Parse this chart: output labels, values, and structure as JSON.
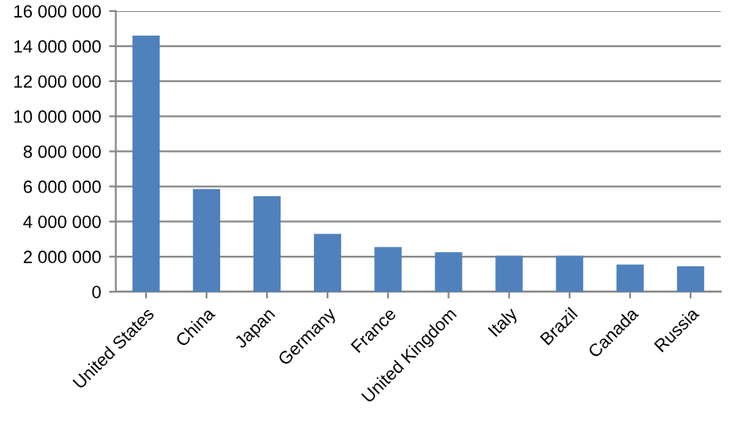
{
  "chart_data": {
    "type": "bar",
    "categories": [
      "United States",
      "China",
      "Japan",
      "Germany",
      "France",
      "United Kingdom",
      "Italy",
      "Brazil",
      "Canada",
      "Russia"
    ],
    "values": [
      14600000,
      5850000,
      5450000,
      3300000,
      2550000,
      2250000,
      2050000,
      2050000,
      1550000,
      1450000
    ],
    "color": "#4f81bd",
    "ylim": [
      0,
      16000000
    ],
    "yticks": [
      {
        "value": 0,
        "label": "0"
      },
      {
        "value": 2000000,
        "label": "2 000 000"
      },
      {
        "value": 4000000,
        "label": "4 000 000"
      },
      {
        "value": 6000000,
        "label": "6 000 000"
      },
      {
        "value": 8000000,
        "label": "8 000 000"
      },
      {
        "value": 10000000,
        "label": "10 000 000"
      },
      {
        "value": 12000000,
        "label": "12 000 000"
      },
      {
        "value": 14000000,
        "label": "14 000 000"
      },
      {
        "value": 16000000,
        "label": "16 000 000"
      }
    ],
    "grid": "y"
  }
}
